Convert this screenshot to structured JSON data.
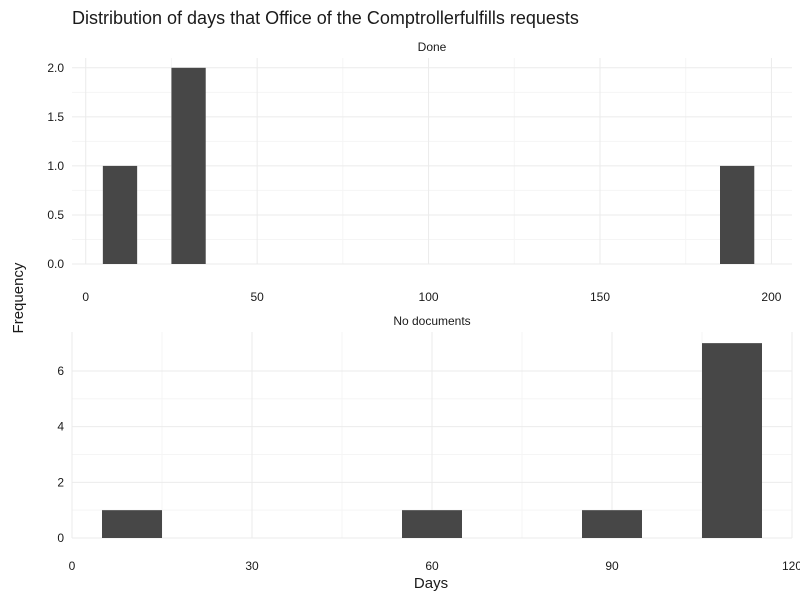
{
  "chart_data": {
    "type": "bar",
    "title": "Distribution of days that Office of the Comptrollerfulfills requests",
    "xlabel": "Days",
    "ylabel": "Frequency",
    "bar_color": "#474747",
    "grid_major_color": "#ebebeb",
    "grid_minor_color": "#f5f5f5",
    "text_color": "#1a1a1a",
    "panels": [
      {
        "facet": "Done",
        "xlim": [
          -4,
          206
        ],
        "ylim": [
          0,
          2.1
        ],
        "x_ticks": [
          0,
          50,
          100,
          150,
          200
        ],
        "y_ticks": [
          0,
          0.5,
          1,
          1.5,
          2
        ],
        "y_tick_labels": [
          "0.0",
          "0.5",
          "1.0",
          "1.5",
          "2.0"
        ],
        "bins": [
          {
            "x0": 5,
            "x1": 15,
            "count": 1
          },
          {
            "x0": 25,
            "x1": 35,
            "count": 2
          },
          {
            "x0": 185,
            "x1": 195,
            "count": 1
          }
        ]
      },
      {
        "facet": "No documents",
        "xlim": [
          0,
          120
        ],
        "ylim": [
          0,
          7.4
        ],
        "x_ticks": [
          0,
          30,
          60,
          90,
          120
        ],
        "y_ticks": [
          0,
          2,
          4,
          6
        ],
        "y_tick_labels": [
          "0",
          "2",
          "4",
          "6"
        ],
        "bins": [
          {
            "x0": 5,
            "x1": 15,
            "count": 1
          },
          {
            "x0": 55,
            "x1": 65,
            "count": 1
          },
          {
            "x0": 85,
            "x1": 95,
            "count": 1
          },
          {
            "x0": 105,
            "x1": 115,
            "count": 7
          }
        ]
      }
    ]
  }
}
